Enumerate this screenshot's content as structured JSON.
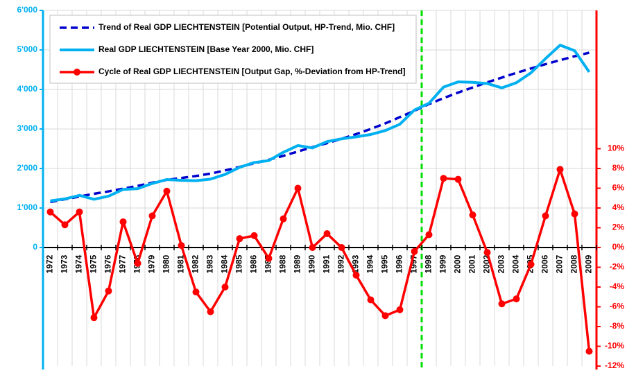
{
  "chart_data": {
    "type": "line",
    "categories": [
      "1972",
      "1973",
      "1974",
      "1975",
      "1976",
      "1977",
      "1978",
      "1979",
      "1980",
      "1981",
      "1982",
      "1983",
      "1984",
      "1985",
      "1986",
      "1987",
      "1988",
      "1989",
      "1990",
      "1991",
      "1992",
      "1993",
      "1994",
      "1995",
      "1996",
      "1997",
      "1998",
      "1999",
      "2000",
      "2001",
      "2002",
      "2003",
      "2004",
      "2005",
      "2006",
      "2007",
      "2008",
      "2009"
    ],
    "series": [
      {
        "name": "Trend of Real GDP LIECHTENSTEIN [Potential Output, HP-Trend, Mio. CHF]",
        "color": "#0000cc",
        "style": "dashed",
        "values": [
          1150,
          1220,
          1290,
          1360,
          1420,
          1490,
          1560,
          1640,
          1710,
          1760,
          1810,
          1870,
          1950,
          2040,
          2130,
          2220,
          2320,
          2430,
          2540,
          2640,
          2750,
          2870,
          3000,
          3140,
          3300,
          3460,
          3630,
          3780,
          3920,
          4050,
          4180,
          4300,
          4420,
          4530,
          4640,
          4740,
          4840,
          4930
        ]
      },
      {
        "name": "Real GDP LIECHTENSTEIN [Base Year 2000, Mio. CHF]",
        "color": "#00b0f0",
        "style": "solid",
        "values": [
          1180,
          1230,
          1320,
          1220,
          1300,
          1470,
          1490,
          1620,
          1720,
          1700,
          1690,
          1730,
          1850,
          2030,
          2150,
          2200,
          2410,
          2580,
          2520,
          2680,
          2750,
          2800,
          2860,
          2960,
          3120,
          3480,
          3650,
          4060,
          4190,
          4180,
          4150,
          4040,
          4170,
          4420,
          4780,
          5120,
          4980,
          4440
        ]
      },
      {
        "name": "Cycle of Real GDP LIECHTENSTEIN [Output Gap, %-Deviation from HP-Trend]",
        "color": "#ff0000",
        "style": "markers",
        "axis": "y2",
        "values": [
          3.6,
          2.3,
          3.6,
          -7.1,
          -4.4,
          2.6,
          -1.6,
          3.2,
          5.7,
          0.2,
          -4.5,
          -6.5,
          -4.0,
          0.9,
          1.2,
          -1.1,
          2.9,
          6.0,
          0.0,
          1.4,
          0.0,
          -2.8,
          -5.3,
          -6.9,
          -6.3,
          -0.4,
          1.3,
          7.0,
          6.9,
          3.3,
          -0.5,
          -5.7,
          -5.2,
          -1.7,
          3.2,
          7.9,
          3.4,
          -10.5
        ]
      }
    ],
    "ylim": [
      -3000,
      6000
    ],
    "yticks": [
      {
        "value": 0,
        "label": "0"
      },
      {
        "value": 1000,
        "label": "1'000"
      },
      {
        "value": 2000,
        "label": "2'000"
      },
      {
        "value": 3000,
        "label": "3'000"
      },
      {
        "value": 4000,
        "label": "4'000"
      },
      {
        "value": 5000,
        "label": "5'000"
      },
      {
        "value": 6000,
        "label": "6'000"
      }
    ],
    "y2lim": [
      -12,
      24
    ],
    "y2ticks": [
      {
        "value": -12,
        "label": "-12%"
      },
      {
        "value": -10,
        "label": "-10%"
      },
      {
        "value": -8,
        "label": "-8%"
      },
      {
        "value": -6,
        "label": "-6%"
      },
      {
        "value": -4,
        "label": "-4%"
      },
      {
        "value": -2,
        "label": "-2%"
      },
      {
        "value": 0,
        "label": "0%"
      },
      {
        "value": 2,
        "label": "2%"
      },
      {
        "value": 4,
        "label": "4%"
      },
      {
        "value": 6,
        "label": "6%"
      },
      {
        "value": 8,
        "label": "8%"
      },
      {
        "value": 10,
        "label": "10%"
      }
    ],
    "grid": true
  }
}
